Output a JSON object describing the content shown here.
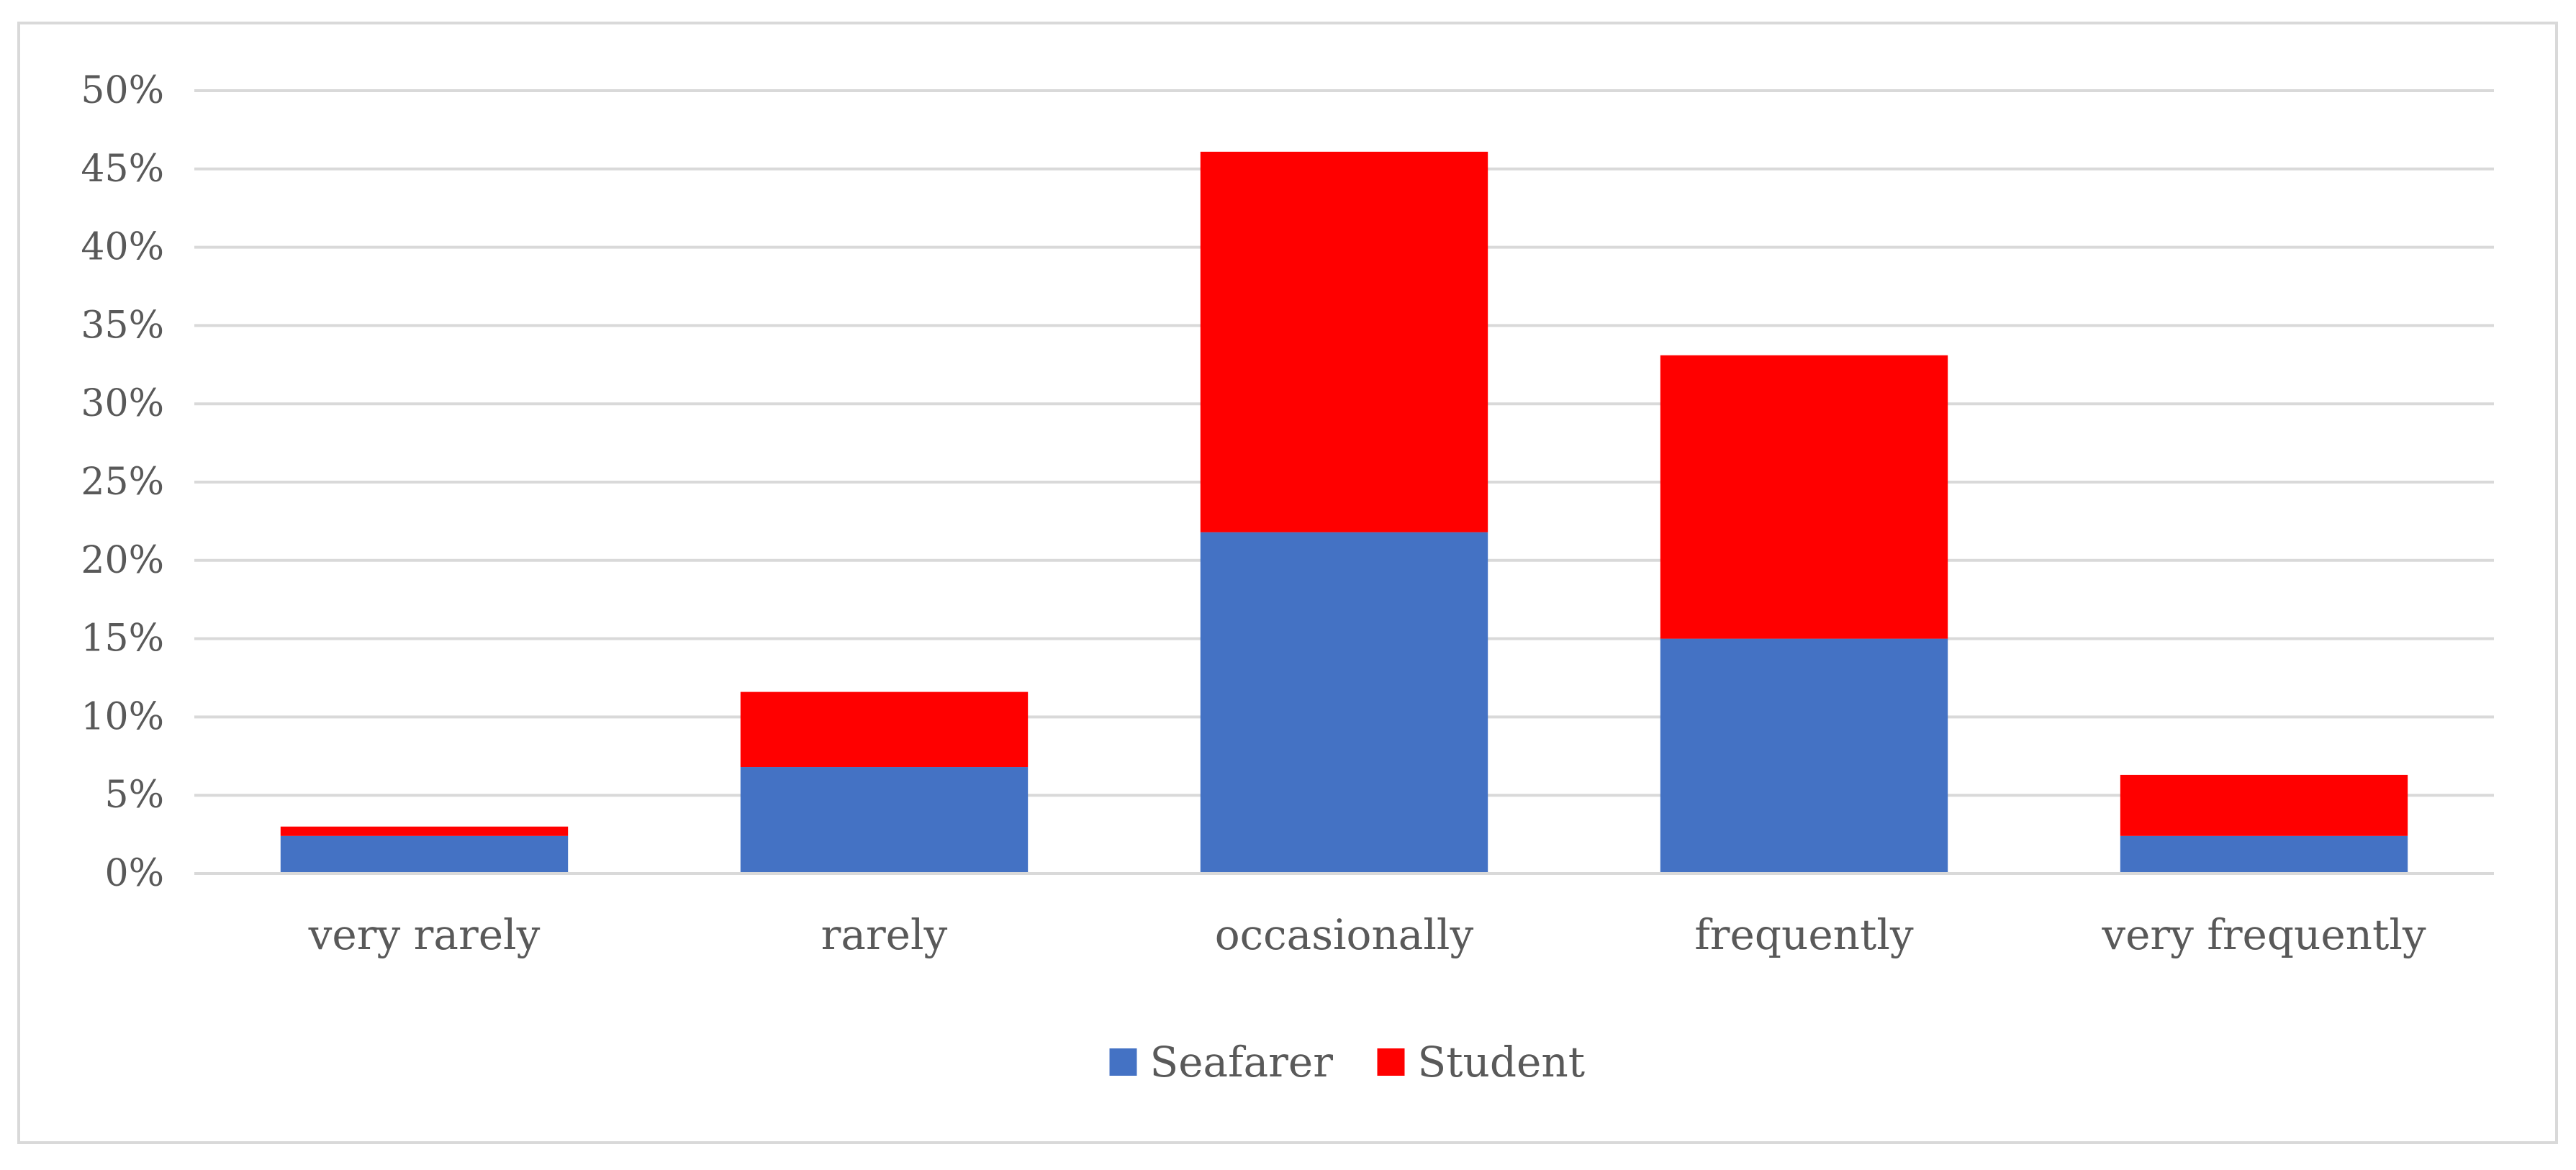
{
  "chart_data": {
    "type": "bar",
    "stacked": true,
    "title": "",
    "xlabel": "",
    "ylabel": "",
    "categories": [
      "very rarely",
      "rarely",
      "occasionally",
      "frequently",
      "very frequently"
    ],
    "series": [
      {
        "name": "Seafarer",
        "color": "#4472c4",
        "values": [
          2.4,
          6.8,
          21.8,
          15.0,
          2.4
        ]
      },
      {
        "name": "Student",
        "color": "#ff0000",
        "values": [
          0.6,
          4.8,
          24.3,
          18.1,
          3.9
        ]
      }
    ],
    "ylim": [
      0,
      50
    ],
    "yticks": [
      0,
      5,
      10,
      15,
      20,
      25,
      30,
      35,
      40,
      45,
      50
    ],
    "ytick_labels": [
      "0%",
      "5%",
      "10%",
      "15%",
      "20%",
      "25%",
      "30%",
      "35%",
      "40%",
      "45%",
      "50%"
    ],
    "grid": true,
    "legend_position": "bottom"
  }
}
